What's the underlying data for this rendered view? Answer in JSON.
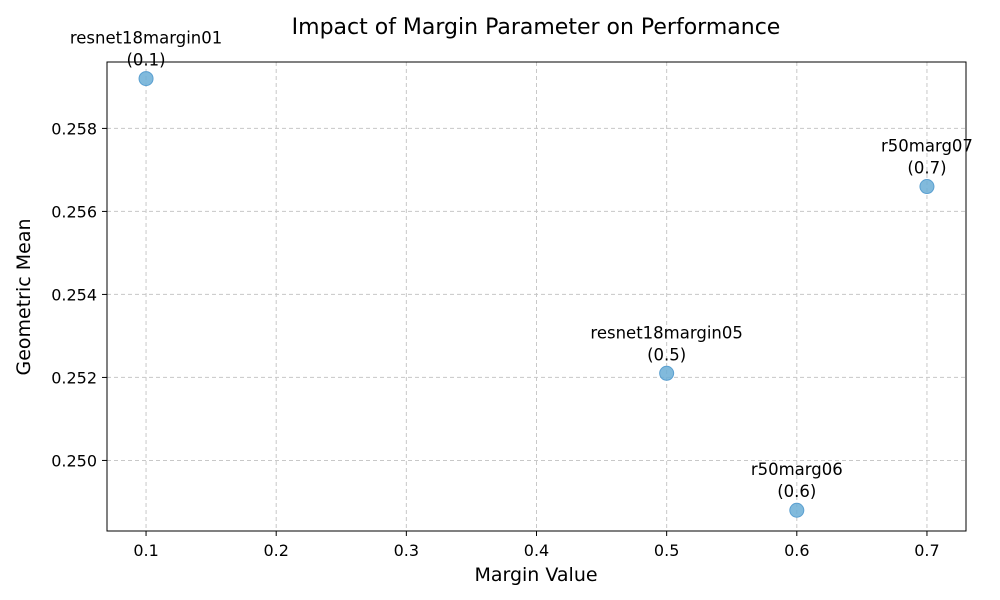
{
  "chart_data": {
    "type": "scatter",
    "title": "Impact of Margin Parameter on Performance",
    "xlabel": "Margin Value",
    "ylabel": "Geometric Mean",
    "xlim": [
      0.07,
      0.73
    ],
    "ylim": [
      0.2483,
      0.2596
    ],
    "xticks": [
      0.1,
      0.2,
      0.3,
      0.4,
      0.5,
      0.6,
      0.7
    ],
    "xtick_labels": [
      "0.1",
      "0.2",
      "0.3",
      "0.4",
      "0.5",
      "0.6",
      "0.7"
    ],
    "yticks": [
      0.25,
      0.252,
      0.254,
      0.256,
      0.258
    ],
    "ytick_labels": [
      "0.250",
      "0.252",
      "0.254",
      "0.256",
      "0.258"
    ],
    "grid": true,
    "marker_color": "#6baed6",
    "points": [
      {
        "x": 0.1,
        "y": 0.2592,
        "label": "resnet18margin01",
        "sublabel": "(0.1)"
      },
      {
        "x": 0.5,
        "y": 0.2521,
        "label": "resnet18margin05",
        "sublabel": "(0.5)"
      },
      {
        "x": 0.6,
        "y": 0.2488,
        "label": "r50marg06",
        "sublabel": "(0.6)"
      },
      {
        "x": 0.7,
        "y": 0.2566,
        "label": "r50marg07",
        "sublabel": "(0.7)"
      }
    ]
  }
}
